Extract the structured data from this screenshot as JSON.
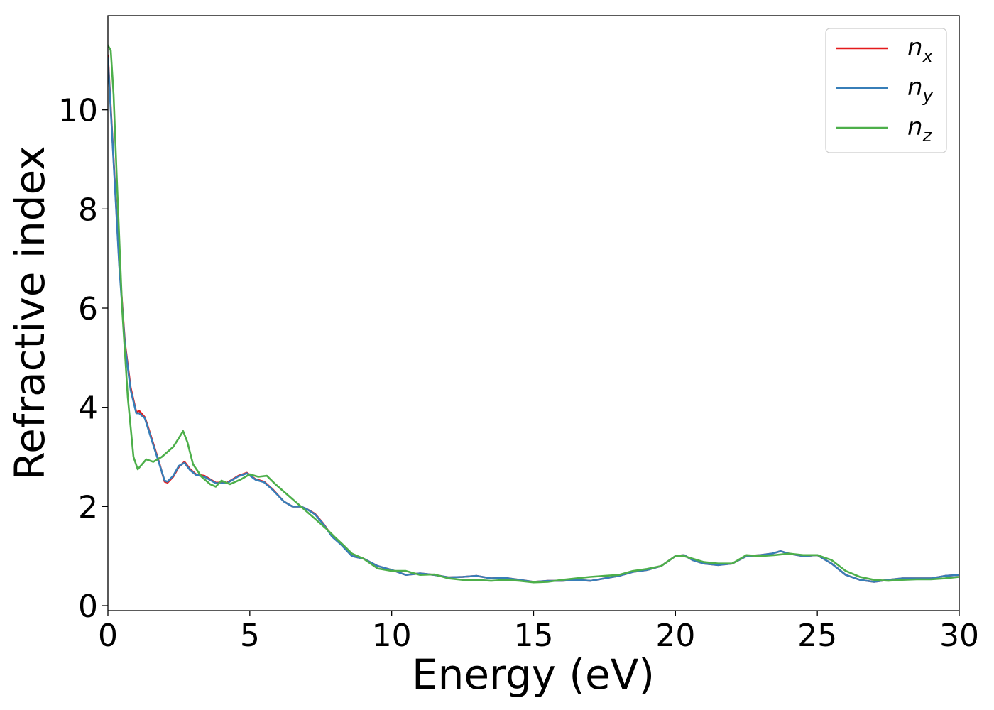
{
  "chart_data": {
    "type": "line",
    "title": "",
    "xlabel": "Energy (eV)",
    "ylabel": "Refractive index",
    "xlim": [
      0,
      30
    ],
    "ylim": [
      -0.1,
      11.9
    ],
    "xticks": [
      0,
      5,
      10,
      15,
      20,
      25,
      30
    ],
    "yticks": [
      0,
      2,
      4,
      6,
      8,
      10
    ],
    "grid": false,
    "legend_position": "top-right",
    "series": [
      {
        "name": "n_x",
        "label_main": "n",
        "label_sub": "x",
        "color": "#e41a1c",
        "x": [
          0,
          0.2,
          0.4,
          0.6,
          0.8,
          1.0,
          1.1,
          1.3,
          1.5,
          1.8,
          2.0,
          2.1,
          2.3,
          2.5,
          2.7,
          2.9,
          3.1,
          3.4,
          3.8,
          4.2,
          4.6,
          4.9,
          5.2,
          5.5,
          5.8,
          6.2,
          6.5,
          6.8,
          7.0,
          7.3,
          7.6,
          7.9,
          8.2,
          8.6,
          9.0,
          9.5,
          10.0,
          10.5,
          11.0,
          11.5,
          12.0,
          12.5,
          13.0,
          13.5,
          14.0,
          14.5,
          15.0,
          15.5,
          16.0,
          16.5,
          17.0,
          17.5,
          18.0,
          18.5,
          19.0,
          19.5,
          20.0,
          20.3,
          20.6,
          21.0,
          21.5,
          22.0,
          22.5,
          23.0,
          23.4,
          23.7,
          24.0,
          24.5,
          25.0,
          25.5,
          26.0,
          26.5,
          27.0,
          27.5,
          28.0,
          28.5,
          29.0,
          29.5,
          30.0
        ],
        "y": [
          11.1,
          9.0,
          6.9,
          5.3,
          4.4,
          3.9,
          3.93,
          3.8,
          3.45,
          2.9,
          2.5,
          2.48,
          2.6,
          2.8,
          2.9,
          2.75,
          2.65,
          2.62,
          2.48,
          2.48,
          2.62,
          2.68,
          2.55,
          2.5,
          2.35,
          2.1,
          2.0,
          2.0,
          1.95,
          1.85,
          1.65,
          1.4,
          1.25,
          1.0,
          0.95,
          0.8,
          0.72,
          0.62,
          0.65,
          0.62,
          0.57,
          0.58,
          0.6,
          0.55,
          0.56,
          0.52,
          0.48,
          0.5,
          0.5,
          0.52,
          0.5,
          0.55,
          0.6,
          0.68,
          0.72,
          0.8,
          1.0,
          1.02,
          0.92,
          0.85,
          0.82,
          0.85,
          1.0,
          1.02,
          1.05,
          1.1,
          1.05,
          1.0,
          1.02,
          0.85,
          0.62,
          0.52,
          0.48,
          0.52,
          0.55,
          0.55,
          0.55,
          0.6,
          0.62
        ]
      },
      {
        "name": "n_y",
        "label_main": "n",
        "label_sub": "y",
        "color": "#377eb8",
        "x": [
          0,
          0.2,
          0.4,
          0.6,
          0.8,
          1.0,
          1.1,
          1.3,
          1.5,
          1.8,
          2.0,
          2.1,
          2.3,
          2.5,
          2.7,
          2.9,
          3.1,
          3.4,
          3.8,
          4.2,
          4.6,
          4.9,
          5.2,
          5.5,
          5.8,
          6.2,
          6.5,
          6.8,
          7.0,
          7.3,
          7.6,
          7.9,
          8.2,
          8.6,
          9.0,
          9.5,
          10.0,
          10.5,
          11.0,
          11.5,
          12.0,
          12.5,
          13.0,
          13.5,
          14.0,
          14.5,
          15.0,
          15.5,
          16.0,
          16.5,
          17.0,
          17.5,
          18.0,
          18.5,
          19.0,
          19.5,
          20.0,
          20.3,
          20.6,
          21.0,
          21.5,
          22.0,
          22.5,
          23.0,
          23.4,
          23.7,
          24.0,
          24.5,
          25.0,
          25.5,
          26.0,
          26.5,
          27.0,
          27.5,
          28.0,
          28.5,
          29.0,
          29.5,
          30.0
        ],
        "y": [
          11.05,
          8.95,
          6.85,
          5.25,
          4.35,
          3.88,
          3.88,
          3.78,
          3.42,
          2.88,
          2.52,
          2.5,
          2.62,
          2.82,
          2.88,
          2.73,
          2.64,
          2.6,
          2.47,
          2.47,
          2.61,
          2.67,
          2.54,
          2.49,
          2.34,
          2.1,
          2.0,
          2.0,
          1.95,
          1.84,
          1.64,
          1.39,
          1.24,
          1.0,
          0.95,
          0.8,
          0.72,
          0.62,
          0.65,
          0.62,
          0.57,
          0.58,
          0.6,
          0.55,
          0.56,
          0.52,
          0.48,
          0.5,
          0.5,
          0.52,
          0.5,
          0.55,
          0.6,
          0.68,
          0.72,
          0.8,
          1.0,
          1.02,
          0.92,
          0.85,
          0.82,
          0.85,
          1.0,
          1.02,
          1.05,
          1.1,
          1.05,
          1.0,
          1.02,
          0.85,
          0.62,
          0.52,
          0.48,
          0.52,
          0.55,
          0.55,
          0.55,
          0.6,
          0.62
        ]
      },
      {
        "name": "n_z",
        "label_main": "n",
        "label_sub": "z",
        "color": "#4daf4a",
        "x": [
          0,
          0.1,
          0.2,
          0.3,
          0.5,
          0.7,
          0.9,
          1.05,
          1.2,
          1.35,
          1.6,
          1.9,
          2.1,
          2.3,
          2.5,
          2.65,
          2.8,
          3.0,
          3.3,
          3.6,
          3.8,
          4.0,
          4.3,
          4.7,
          5.0,
          5.3,
          5.6,
          5.9,
          6.2,
          6.5,
          6.8,
          7.1,
          7.4,
          7.7,
          8.0,
          8.3,
          8.6,
          9.0,
          9.5,
          10.0,
          10.5,
          11.0,
          11.5,
          12.0,
          12.5,
          13.0,
          13.5,
          14.0,
          14.5,
          15.0,
          15.5,
          16.0,
          16.5,
          17.0,
          17.5,
          18.0,
          18.5,
          19.0,
          19.5,
          20.0,
          20.3,
          20.6,
          21.0,
          21.5,
          22.0,
          22.5,
          23.0,
          23.5,
          24.0,
          24.5,
          25.0,
          25.5,
          26.0,
          26.5,
          27.0,
          27.5,
          28.0,
          28.5,
          29.0,
          29.5,
          30.0
        ],
        "y": [
          11.3,
          11.2,
          10.3,
          8.8,
          6.0,
          4.2,
          3.0,
          2.75,
          2.85,
          2.95,
          2.9,
          3.0,
          3.1,
          3.2,
          3.38,
          3.52,
          3.3,
          2.85,
          2.6,
          2.45,
          2.4,
          2.52,
          2.45,
          2.55,
          2.65,
          2.6,
          2.62,
          2.45,
          2.3,
          2.15,
          2.0,
          1.85,
          1.7,
          1.55,
          1.38,
          1.22,
          1.05,
          0.95,
          0.75,
          0.7,
          0.7,
          0.62,
          0.63,
          0.55,
          0.52,
          0.52,
          0.5,
          0.52,
          0.5,
          0.47,
          0.48,
          0.52,
          0.55,
          0.58,
          0.6,
          0.62,
          0.7,
          0.74,
          0.8,
          1.0,
          1.0,
          0.95,
          0.88,
          0.85,
          0.85,
          1.02,
          1.0,
          1.02,
          1.05,
          1.02,
          1.02,
          0.92,
          0.7,
          0.58,
          0.52,
          0.5,
          0.52,
          0.53,
          0.53,
          0.55,
          0.58
        ]
      }
    ]
  }
}
